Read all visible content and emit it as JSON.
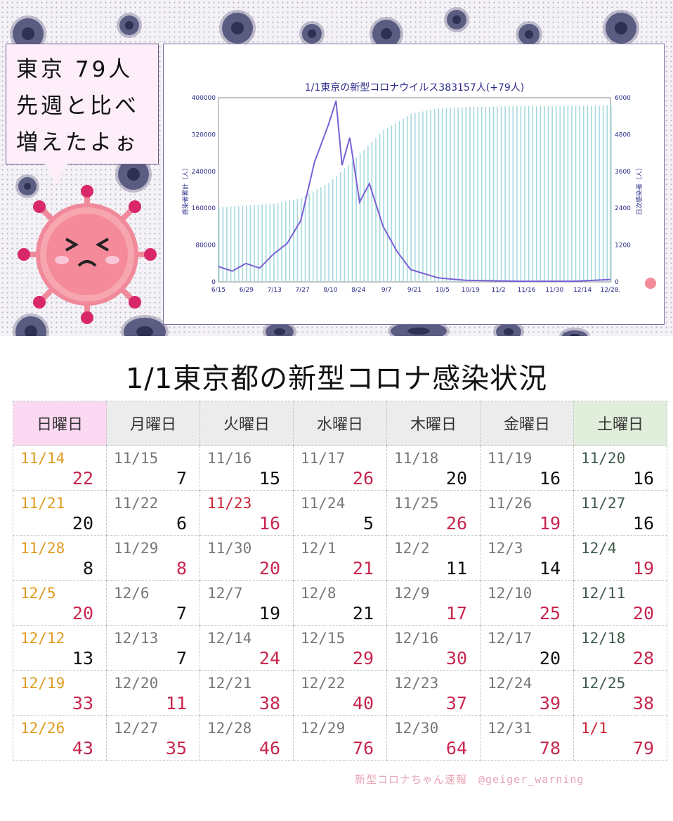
{
  "speech": {
    "lines": [
      "東京 79人",
      "先週と比べ",
      "増えたよぉ"
    ]
  },
  "chart_data": {
    "type": "bar",
    "title": "1/1東京の新型コロナウイルス383157人(+79人)",
    "ylabel": "感染者累計（人）",
    "y2label": "日次感染者（人）",
    "x_ticks": [
      "6/15",
      "6/29",
      "7/13",
      "7/27",
      "8/10",
      "8/24",
      "9/7",
      "9/21",
      "10/5",
      "10/19",
      "11/2",
      "11/16",
      "11/30",
      "12/14",
      "12/28."
    ],
    "y_ticks": [
      "0",
      "80000",
      "160000",
      "240000",
      "320000",
      "400000"
    ],
    "y2_ticks": [
      "0",
      "1200",
      "2400",
      "3600",
      "4800",
      "6000"
    ],
    "ylim": [
      0,
      400000
    ],
    "y2lim": [
      0,
      6000
    ],
    "x_range": [
      "6/15",
      "1/1"
    ],
    "series": [
      {
        "kind": "bar",
        "axis": "left",
        "color": "#a6d8df",
        "points": [
          [
            "6/15",
            162000
          ],
          [
            "7/13",
            170000
          ],
          [
            "7/27",
            182000
          ],
          [
            "8/10",
            215000
          ],
          [
            "8/24",
            270000
          ],
          [
            "9/7",
            330000
          ],
          [
            "9/21",
            365000
          ],
          [
            "10/5",
            377000
          ],
          [
            "10/19",
            380000
          ],
          [
            "11/16",
            381500
          ],
          [
            "12/14",
            382500
          ],
          [
            "1/1",
            383157
          ]
        ]
      },
      {
        "kind": "line",
        "axis": "right",
        "color": "#7b5fd6",
        "points": [
          [
            "6/15",
            500
          ],
          [
            "6/22",
            350
          ],
          [
            "6/29",
            600
          ],
          [
            "7/6",
            450
          ],
          [
            "7/13",
            900
          ],
          [
            "7/20",
            1250
          ],
          [
            "7/27",
            2000
          ],
          [
            "8/3",
            3900
          ],
          [
            "8/10",
            5100
          ],
          [
            "8/14",
            5900
          ],
          [
            "8/17",
            3800
          ],
          [
            "8/21",
            4700
          ],
          [
            "8/26",
            2600
          ],
          [
            "8/31",
            3200
          ],
          [
            "9/7",
            1800
          ],
          [
            "9/14",
            1000
          ],
          [
            "9/21",
            400
          ],
          [
            "10/5",
            130
          ],
          [
            "10/19",
            50
          ],
          [
            "11/16",
            20
          ],
          [
            "12/14",
            20
          ],
          [
            "1/1",
            79
          ]
        ]
      }
    ]
  },
  "table": {
    "title": "1/1東京都の新型コロナ感染状況",
    "weekdays": [
      "日曜日",
      "月曜日",
      "火曜日",
      "水曜日",
      "木曜日",
      "金曜日",
      "土曜日"
    ],
    "weeks": [
      [
        {
          "d": "11/14",
          "n": "22"
        },
        {
          "d": "11/15",
          "n": "7"
        },
        {
          "d": "11/16",
          "n": "15"
        },
        {
          "d": "11/17",
          "n": "26"
        },
        {
          "d": "11/18",
          "n": "20"
        },
        {
          "d": "11/19",
          "n": "16"
        },
        {
          "d": "11/20",
          "n": "16"
        }
      ],
      [
        {
          "d": "11/21",
          "n": "20"
        },
        {
          "d": "11/22",
          "n": "6"
        },
        {
          "d": "11/23",
          "n": "16"
        },
        {
          "d": "11/24",
          "n": "5"
        },
        {
          "d": "11/25",
          "n": "26"
        },
        {
          "d": "11/26",
          "n": "19"
        },
        {
          "d": "11/27",
          "n": "16"
        }
      ],
      [
        {
          "d": "11/28",
          "n": "8"
        },
        {
          "d": "11/29",
          "n": "8"
        },
        {
          "d": "11/30",
          "n": "20"
        },
        {
          "d": "12/1",
          "n": "21"
        },
        {
          "d": "12/2",
          "n": "11"
        },
        {
          "d": "12/3",
          "n": "14"
        },
        {
          "d": "12/4",
          "n": "19"
        }
      ],
      [
        {
          "d": "12/5",
          "n": "20"
        },
        {
          "d": "12/6",
          "n": "7"
        },
        {
          "d": "12/7",
          "n": "19"
        },
        {
          "d": "12/8",
          "n": "21"
        },
        {
          "d": "12/9",
          "n": "17"
        },
        {
          "d": "12/10",
          "n": "25"
        },
        {
          "d": "12/11",
          "n": "20"
        }
      ],
      [
        {
          "d": "12/12",
          "n": "13"
        },
        {
          "d": "12/13",
          "n": "7"
        },
        {
          "d": "12/14",
          "n": "24"
        },
        {
          "d": "12/15",
          "n": "29"
        },
        {
          "d": "12/16",
          "n": "30"
        },
        {
          "d": "12/17",
          "n": "20"
        },
        {
          "d": "12/18",
          "n": "28"
        }
      ],
      [
        {
          "d": "12/19",
          "n": "33"
        },
        {
          "d": "12/20",
          "n": "11"
        },
        {
          "d": "12/21",
          "n": "38"
        },
        {
          "d": "12/22",
          "n": "40"
        },
        {
          "d": "12/23",
          "n": "37"
        },
        {
          "d": "12/24",
          "n": "39"
        },
        {
          "d": "12/25",
          "n": "38"
        }
      ],
      [
        {
          "d": "12/26",
          "n": "43"
        },
        {
          "d": "12/27",
          "n": "35"
        },
        {
          "d": "12/28",
          "n": "46"
        },
        {
          "d": "12/29",
          "n": "76"
        },
        {
          "d": "12/30",
          "n": "64"
        },
        {
          "d": "12/31",
          "n": "78"
        },
        {
          "d": "1/1",
          "n": "79"
        }
      ]
    ],
    "red_dates": [
      "11/23",
      "1/1"
    ]
  },
  "colors": {
    "sunday_date": "#e09a1e",
    "saturday_date": "#3e5a4a",
    "holiday_date": "#cc2233",
    "weekday_date": "#777777",
    "increase": "#c8264e",
    "normal": "#111111"
  },
  "credit": "新型コロナちゃん速報　@geiger_warning"
}
